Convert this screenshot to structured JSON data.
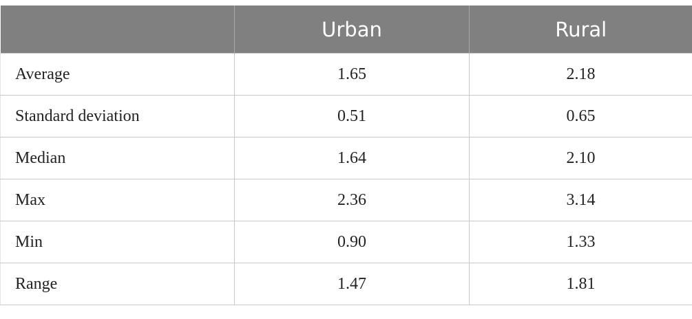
{
  "table": {
    "columns": [
      "Urban",
      "Rural"
    ],
    "rows": [
      [
        "Average",
        "1.65",
        "2.18"
      ],
      [
        "Standard deviation",
        "0.51",
        "0.65"
      ],
      [
        "Median",
        "1.64",
        "2.10"
      ],
      [
        "Max",
        "2.36",
        "3.14"
      ],
      [
        "Min",
        "0.90",
        "1.33"
      ],
      [
        "Range",
        "1.47",
        "1.81"
      ]
    ]
  }
}
